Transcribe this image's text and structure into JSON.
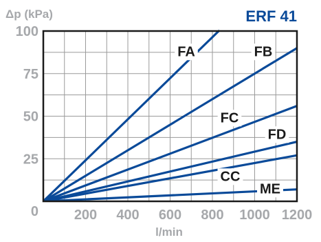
{
  "chart_data": {
    "type": "line",
    "title": "ERF 41",
    "ylabel": "Δp (kPa)",
    "xlabel": "l/min",
    "xlim": [
      0,
      1200
    ],
    "ylim": [
      0,
      100
    ],
    "x_ticks": [
      200,
      400,
      600,
      800,
      1000,
      1200
    ],
    "y_ticks": [
      0,
      25,
      50,
      75,
      100
    ],
    "x_tick_labels": [
      "200",
      "400",
      "600",
      "800",
      "1000",
      "1200"
    ],
    "y_tick_labels": [
      "0",
      "25",
      "50",
      "75",
      "100"
    ],
    "grid": true,
    "line_color": "#0a4a99",
    "series": [
      {
        "name": "FA",
        "x": [
          0,
          830
        ],
        "y": [
          0,
          100
        ]
      },
      {
        "name": "FB",
        "x": [
          0,
          1200
        ],
        "y": [
          0,
          90
        ]
      },
      {
        "name": "FC",
        "x": [
          0,
          1200
        ],
        "y": [
          0,
          56
        ]
      },
      {
        "name": "FD",
        "x": [
          0,
          1200
        ],
        "y": [
          0,
          35
        ]
      },
      {
        "name": "CC",
        "x": [
          0,
          1200
        ],
        "y": [
          0,
          27
        ]
      },
      {
        "name": "ME",
        "x": [
          0,
          1200
        ],
        "y": [
          0,
          7
        ]
      }
    ]
  }
}
